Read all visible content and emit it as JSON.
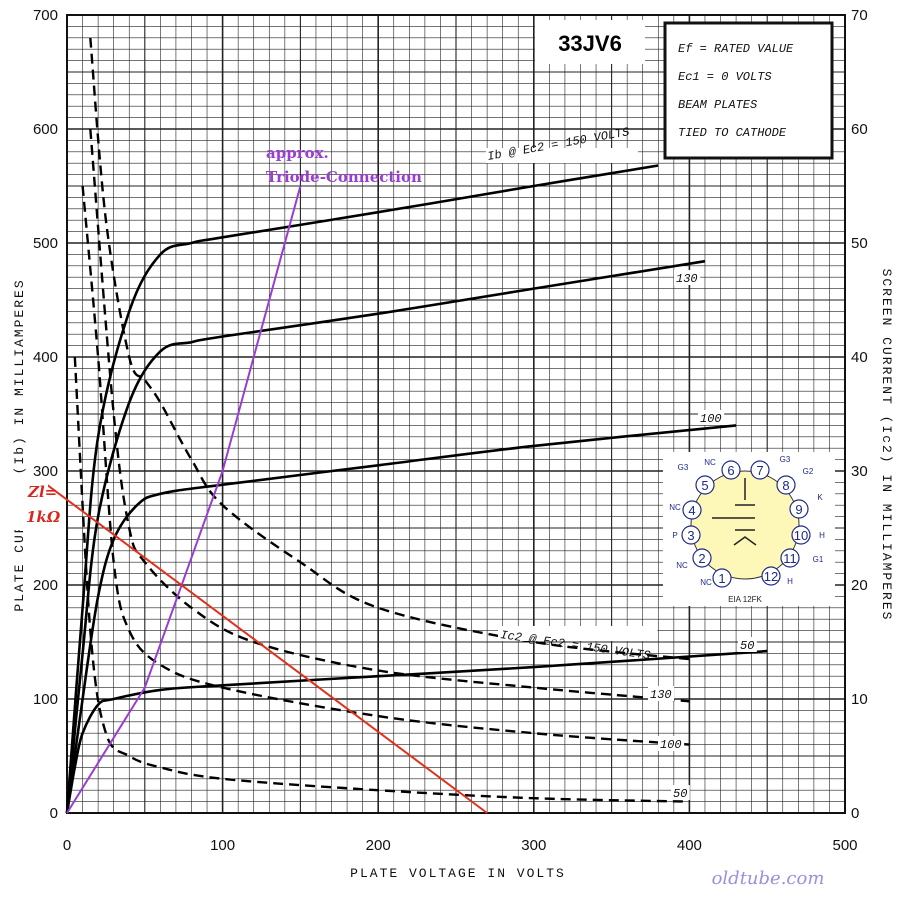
{
  "chart_data": {
    "type": "line",
    "title": "33JV6",
    "xlabel": "PLATE VOLTAGE IN VOLTS",
    "ylabel": "PLATE CURRENT (Ib) IN MILLIAMPERES",
    "ylabel_right": "SCREEN CURRENT (Ic2) IN MILLIAMPERES",
    "xlim": [
      0,
      500
    ],
    "ylim": [
      0,
      700
    ],
    "ylim_right": [
      0,
      70
    ],
    "x_ticks": [
      "0",
      "100",
      "200",
      "300",
      "400",
      "500"
    ],
    "y_ticks": [
      "0",
      "100",
      "200",
      "300",
      "400",
      "500",
      "600",
      "700"
    ],
    "y_ticks_right": [
      "0",
      "10",
      "20",
      "30",
      "40",
      "50",
      "60",
      "70"
    ],
    "grid": true,
    "conditions": [
      "Ef = RATED VALUE",
      "Ec1 = 0 VOLTS",
      "BEAM PLATES",
      "TIED TO CATHODE"
    ],
    "plate_series": [
      {
        "label": "Ib @ Ec2 = 150 VOLTS",
        "points": [
          [
            0,
            0
          ],
          [
            10,
            180
          ],
          [
            20,
            330
          ],
          [
            40,
            440
          ],
          [
            60,
            490
          ],
          [
            80,
            500
          ],
          [
            100,
            505
          ],
          [
            200,
            527
          ],
          [
            300,
            550
          ],
          [
            380,
            568
          ]
        ]
      },
      {
        "label": "130",
        "points": [
          [
            0,
            0
          ],
          [
            10,
            140
          ],
          [
            20,
            260
          ],
          [
            40,
            360
          ],
          [
            60,
            405
          ],
          [
            80,
            413
          ],
          [
            100,
            418
          ],
          [
            200,
            438
          ],
          [
            300,
            460
          ],
          [
            410,
            484
          ]
        ]
      },
      {
        "label": "100",
        "points": [
          [
            0,
            0
          ],
          [
            10,
            100
          ],
          [
            20,
            190
          ],
          [
            30,
            240
          ],
          [
            45,
            270
          ],
          [
            60,
            280
          ],
          [
            100,
            288
          ],
          [
            200,
            305
          ],
          [
            300,
            322
          ],
          [
            430,
            340
          ]
        ]
      },
      {
        "label": "50",
        "points": [
          [
            0,
            0
          ],
          [
            5,
            40
          ],
          [
            10,
            70
          ],
          [
            20,
            95
          ],
          [
            30,
            100
          ],
          [
            60,
            108
          ],
          [
            100,
            112
          ],
          [
            200,
            120
          ],
          [
            300,
            128
          ],
          [
            450,
            142
          ]
        ]
      }
    ],
    "screen_series": [
      {
        "label": "Ic2 @ Ec2 = 150 VOLTS",
        "points": [
          [
            15,
            68
          ],
          [
            25,
            52
          ],
          [
            40,
            40
          ],
          [
            50,
            38
          ],
          [
            60,
            36
          ],
          [
            80,
            31
          ],
          [
            100,
            27
          ],
          [
            150,
            22
          ],
          [
            200,
            18
          ],
          [
            300,
            15
          ],
          [
            400,
            13.5
          ]
        ]
      },
      {
        "label": "130",
        "points": [
          [
            15,
            60
          ],
          [
            30,
            35
          ],
          [
            40,
            25
          ],
          [
            50,
            22
          ],
          [
            80,
            18
          ],
          [
            120,
            15
          ],
          [
            200,
            12.5
          ],
          [
            300,
            11
          ],
          [
            400,
            9.8
          ]
        ]
      },
      {
        "label": "100",
        "points": [
          [
            10,
            55
          ],
          [
            20,
            40
          ],
          [
            30,
            22
          ],
          [
            40,
            16
          ],
          [
            60,
            13
          ],
          [
            100,
            11
          ],
          [
            200,
            8.5
          ],
          [
            300,
            7
          ],
          [
            400,
            6
          ]
        ]
      },
      {
        "label": "50",
        "points": [
          [
            5,
            40
          ],
          [
            15,
            16
          ],
          [
            25,
            7
          ],
          [
            40,
            5
          ],
          [
            60,
            4
          ],
          [
            100,
            3
          ],
          [
            200,
            2
          ],
          [
            300,
            1.3
          ],
          [
            400,
            1
          ]
        ]
      }
    ],
    "annotations": [
      {
        "text": "approx. Triode-Connection",
        "line": [
          [
            0,
            0
          ],
          [
            50,
            110
          ],
          [
            100,
            300
          ],
          [
            150,
            550
          ]
        ]
      },
      {
        "text": "Zl= 1kΩ",
        "line": [
          [
            0,
            280
          ],
          [
            270,
            0
          ]
        ]
      }
    ]
  },
  "labels": {
    "tube_name": "33JV6",
    "triode_line1": "approx.",
    "triode_line2": "Triode-Connection",
    "zl_line1": "Zl=",
    "zl_line2": "1kΩ",
    "watermark": "oldtube.com",
    "eia": "EIA 12FK"
  },
  "pinout": {
    "pins": [
      "1",
      "2",
      "3",
      "4",
      "5",
      "6",
      "7",
      "8",
      "9",
      "10",
      "11",
      "12"
    ],
    "pin_labels": [
      {
        "text": "NC"
      },
      {
        "text": "NC"
      },
      {
        "text": "P"
      },
      {
        "text": "NC"
      },
      {
        "text": "G3"
      },
      {
        "text": "NC"
      },
      {
        "text": "G3"
      },
      {
        "text": "G2"
      },
      {
        "text": "K"
      },
      {
        "text": "H"
      },
      {
        "text": "G1"
      },
      {
        "text": "H"
      }
    ]
  }
}
